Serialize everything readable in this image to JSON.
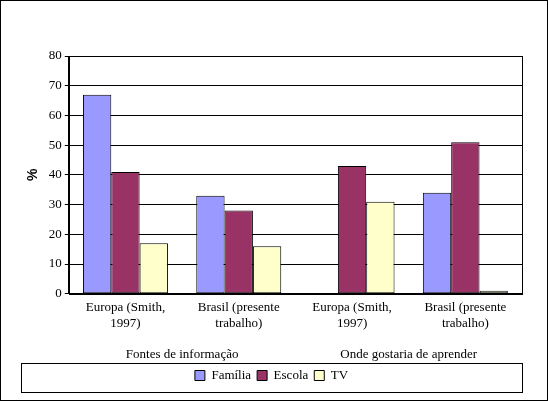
{
  "chart_data": {
    "type": "bar",
    "categories": [
      "Europa (Smith, 1997)",
      "Brasil (presente trabalho)",
      "Europa (Smith, 1997)",
      "Brasil (presente trabalho)"
    ],
    "category_groups": [
      "Fontes de informação",
      "Onde gostaria de aprender"
    ],
    "y_label": "%",
    "series": [
      {
        "name": "Família",
        "color": "#9999ff",
        "values": [
          67,
          33,
          null,
          34
        ]
      },
      {
        "name": "Escola",
        "color": "#993366",
        "values": [
          41,
          28,
          43,
          51
        ]
      },
      {
        "name": "TV",
        "color": "#ffffcc",
        "values": [
          17,
          16,
          31,
          1
        ]
      }
    ],
    "ylim": [
      0,
      80
    ],
    "yticks": [
      0,
      10,
      20,
      30,
      40,
      50,
      60,
      70,
      80
    ],
    "grid": true,
    "legend": "bottom"
  }
}
